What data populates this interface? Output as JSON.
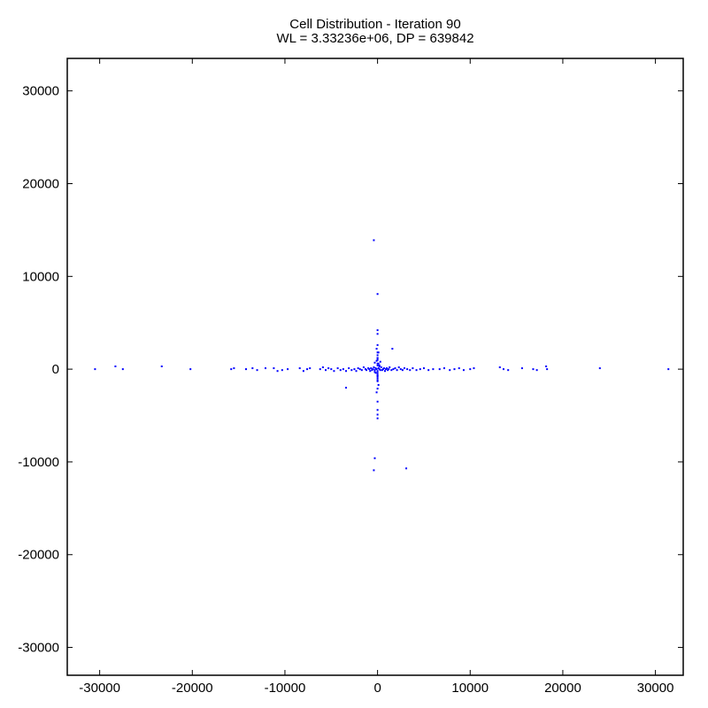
{
  "chart_data": {
    "type": "scatter",
    "title": "Cell Distribution - Iteration 90",
    "subtitle": "WL = 3.33236e+06, DP = 639842",
    "xlabel": "",
    "ylabel": "",
    "xlim": [
      -33500,
      33000
    ],
    "ylim": [
      -33000,
      33500
    ],
    "x_ticks": [
      -30000,
      -20000,
      -10000,
      0,
      10000,
      20000,
      30000
    ],
    "y_ticks": [
      -30000,
      -20000,
      -10000,
      0,
      10000,
      20000,
      30000
    ],
    "x_tick_labels": [
      "-30000",
      "-20000",
      "-10000",
      "0",
      "10000",
      "20000",
      "30000"
    ],
    "y_tick_labels": [
      "-30000",
      "-20000",
      "-10000",
      "0",
      "10000",
      "20000",
      "30000"
    ],
    "grid": false,
    "marker_color": "#0000ff",
    "series": [
      {
        "x": [
          -30500,
          -28300,
          -27500,
          -23300,
          -20200,
          -15800,
          -15500,
          -14200,
          -13500,
          -13000,
          -12100,
          -11200,
          -10800,
          -10300,
          -9700,
          -8400,
          -8000,
          -7600,
          -7300,
          -6200,
          -5900,
          -5600,
          -5300,
          -5000,
          -4700,
          -4300,
          -4000,
          -3700,
          -3400,
          -3100,
          -2800,
          -2500,
          -2300,
          -2100,
          -1900,
          -1700,
          -1500,
          -1300,
          -1200,
          -1000,
          -900,
          -800,
          -700,
          -600,
          -500,
          -400,
          -300,
          -200,
          -100,
          0,
          100,
          200,
          300,
          400,
          500,
          600,
          700,
          800,
          900,
          1000,
          1100,
          1200,
          1300,
          1500,
          1700,
          1900,
          2100,
          2300,
          2500,
          2700,
          2900,
          3200,
          3500,
          3800,
          4200,
          4600,
          5000,
          5500,
          6000,
          6700,
          7200,
          7800,
          8300,
          8800,
          9300,
          10000,
          10400,
          13200,
          13600,
          14100,
          15600,
          16800,
          17200,
          18200,
          18300,
          24000,
          31400,
          0,
          -100,
          100,
          0,
          0,
          -100,
          100,
          0,
          0,
          0,
          0,
          0,
          100,
          0,
          -100,
          0,
          0,
          0,
          0,
          0,
          0,
          0,
          0,
          0,
          0,
          0,
          -400,
          0,
          -300,
          -400,
          -300,
          3100,
          1600,
          -3400,
          300,
          -200,
          200,
          -300,
          0,
          200,
          0
        ],
        "y": [
          0,
          300,
          0,
          300,
          0,
          0,
          100,
          0,
          100,
          -100,
          100,
          100,
          -200,
          -100,
          0,
          100,
          -200,
          0,
          100,
          0,
          200,
          -100,
          100,
          0,
          -200,
          100,
          -100,
          0,
          -200,
          100,
          -100,
          0,
          -200,
          100,
          0,
          -100,
          200,
          0,
          -100,
          100,
          0,
          -200,
          100,
          -100,
          0,
          200,
          -100,
          100,
          0,
          -200,
          100,
          0,
          -100,
          200,
          -100,
          0,
          100,
          -200,
          0,
          100,
          -100,
          0,
          200,
          -100,
          0,
          100,
          -100,
          200,
          0,
          -100,
          100,
          0,
          -100,
          100,
          -100,
          0,
          100,
          -100,
          0,
          0,
          100,
          -100,
          0,
          100,
          -100,
          0,
          100,
          200,
          0,
          -100,
          100,
          0,
          -100,
          300,
          0,
          100,
          0,
          2600,
          2200,
          1800,
          1500,
          1200,
          900,
          600,
          400,
          -400,
          -700,
          -1000,
          -1300,
          -1700,
          -2100,
          -2500,
          3800,
          4200,
          -3500,
          -4400,
          -4900,
          -5300,
          600,
          1200,
          1800,
          -600,
          -1200,
          13900,
          8100,
          -9600,
          -10900,
          -300,
          -10700,
          2200,
          -2000,
          800,
          -400,
          400,
          700,
          -800,
          300,
          1000
        ]
      }
    ]
  }
}
